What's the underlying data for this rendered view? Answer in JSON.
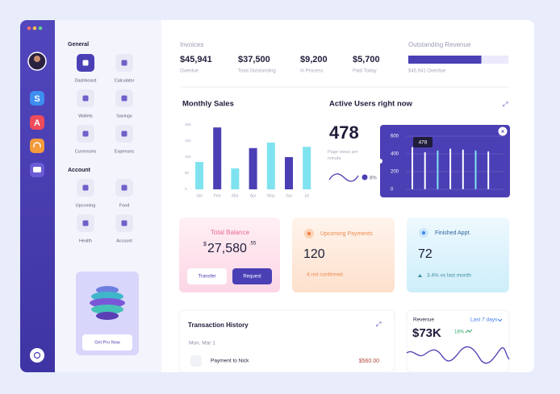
{
  "sidebar": {
    "apps": [
      "S",
      "A"
    ]
  },
  "menu": {
    "general_title": "General",
    "general": [
      "Dashboard",
      "Calculator",
      "Wallets",
      "Savings",
      "Currencies",
      "Expenses"
    ],
    "account_title": "Account",
    "account": [
      "Upcoming",
      "Food",
      "Health",
      "Account"
    ]
  },
  "promo": {
    "button": "Get Pro Now"
  },
  "invoices": {
    "title": "Invoices",
    "stats": [
      {
        "value": "$45,941",
        "label": "Overdue"
      },
      {
        "value": "$37,500",
        "label": "Total Outstanding"
      },
      {
        "value": "$9,200",
        "label": "In Process"
      },
      {
        "value": "$5,700",
        "label": "Paid Today"
      }
    ]
  },
  "outstanding": {
    "title": "Outstanding Revenue",
    "label": "$45,941 Overdue",
    "progress_percent": 73
  },
  "monthly_sales": {
    "title": "Monthly Sales",
    "categories": [
      "Jan",
      "Feb",
      "Mar",
      "Apr",
      "May",
      "Jun",
      "Jul"
    ],
    "values": [
      85,
      192,
      65,
      128,
      145,
      100,
      132
    ],
    "colors": [
      "#7fe3ef",
      "#4b3fb5",
      "#7fe3ef",
      "#4b3fb5",
      "#7fe3ef",
      "#4b3fb5",
      "#7fe3ef"
    ],
    "ylim": [
      0,
      200
    ],
    "yticks": [
      0,
      50,
      100,
      150,
      200
    ]
  },
  "active_users": {
    "title": "Active Users right now",
    "value": "478",
    "caption": "Page views per minute",
    "change": "8%",
    "chart": {
      "values": [
        478,
        420,
        440,
        460,
        450,
        440,
        430
      ],
      "ylim": [
        0,
        600
      ],
      "yticks": [
        0,
        200,
        400,
        600
      ],
      "tooltip": "478"
    }
  },
  "balance": {
    "title": "Total Balance",
    "currency": "$",
    "amount": "27,580",
    "cents": ".55",
    "buttons": [
      "Transfer",
      "Request"
    ]
  },
  "upcoming": {
    "title": "Upcoming Payments",
    "value": "120",
    "note": "4 not confirmed"
  },
  "finished": {
    "title": "Finished Appt.",
    "value": "72",
    "note": "3.4% vs last month"
  },
  "transactions": {
    "title": "Transaction History",
    "date": "Mon, Mar 1",
    "rows": [
      {
        "label": "Payment to Nick",
        "amount": "$560.00"
      }
    ]
  },
  "revenue": {
    "title": "Revenue",
    "period": "Last 7 days",
    "value": "$73K",
    "change": "18%"
  }
}
